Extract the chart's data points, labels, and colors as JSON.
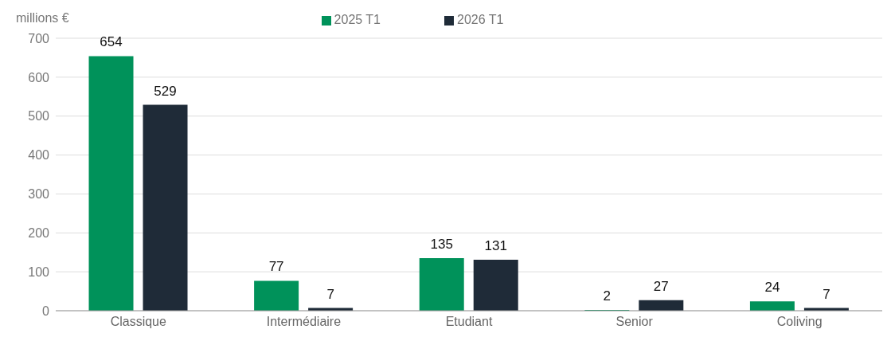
{
  "chart_data": {
    "type": "bar",
    "ylabel": "millions €",
    "categories": [
      "Classique",
      "Intermédiaire",
      "Etudiant",
      "Senior",
      "Coliving"
    ],
    "series": [
      {
        "name": "2025 T1",
        "color": "#00925a",
        "values": [
          654,
          77,
          135,
          2,
          24
        ]
      },
      {
        "name": "2026 T1",
        "color": "#1f2b38",
        "values": [
          529,
          7,
          131,
          27,
          7
        ]
      }
    ],
    "ylim": [
      0,
      700
    ],
    "yticks": [
      0,
      100,
      200,
      300,
      400,
      500,
      600,
      700
    ],
    "grid": "y",
    "legend": "top",
    "data_labels": true
  }
}
